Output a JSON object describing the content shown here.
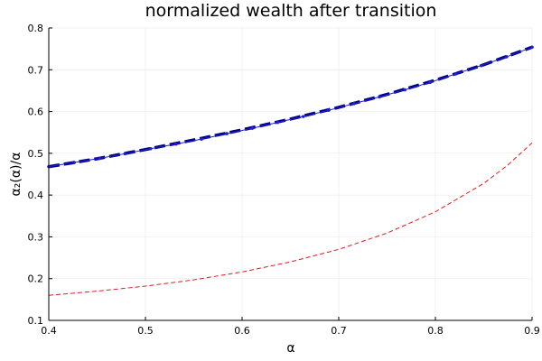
{
  "chart_data": {
    "type": "line",
    "title": "normalized wealth after transition",
    "xlabel": "α",
    "ylabel": "α₂(α)/α",
    "xlim": [
      0.4,
      0.9
    ],
    "ylim": [
      0.1,
      0.8
    ],
    "xticks": [
      "0.4",
      "0.5",
      "0.6",
      "0.7",
      "0.8",
      "0.9"
    ],
    "yticks": [
      "0.1",
      "0.2",
      "0.3",
      "0.4",
      "0.5",
      "0.6",
      "0.7",
      "0.8"
    ],
    "grid": true,
    "legend": "none",
    "series": [
      {
        "style": "thick-dashed",
        "color": "#000080",
        "x": [
          0.4,
          0.45,
          0.5,
          0.55,
          0.6,
          0.65,
          0.7,
          0.75,
          0.8,
          0.85,
          0.9
        ],
        "y": [
          0.468,
          0.487,
          0.509,
          0.532,
          0.556,
          0.582,
          0.61,
          0.641,
          0.675,
          0.712,
          0.754
        ]
      },
      {
        "style": "line-with-markers",
        "color": "#1f1fd6",
        "x": [
          0.4,
          0.4263,
          0.4526,
          0.4789,
          0.5053,
          0.5316,
          0.5579,
          0.5842,
          0.6105,
          0.6368,
          0.6632,
          0.6895,
          0.7158,
          0.7421,
          0.7684,
          0.7947,
          0.8211,
          0.8474,
          0.8737,
          0.9
        ],
        "y": [
          0.468,
          0.478,
          0.488,
          0.499,
          0.511,
          0.522,
          0.534,
          0.547,
          0.56,
          0.574,
          0.588,
          0.603,
          0.619,
          0.635,
          0.652,
          0.67,
          0.69,
          0.71,
          0.731,
          0.754
        ]
      },
      {
        "style": "dashed",
        "color": "#e31a1c",
        "x": [
          0.4,
          0.45,
          0.5,
          0.55,
          0.6,
          0.65,
          0.7,
          0.75,
          0.8,
          0.85,
          0.875,
          0.9
        ],
        "y": [
          0.16,
          0.17,
          0.182,
          0.197,
          0.216,
          0.24,
          0.27,
          0.309,
          0.36,
          0.428,
          0.472,
          0.525
        ]
      }
    ]
  }
}
